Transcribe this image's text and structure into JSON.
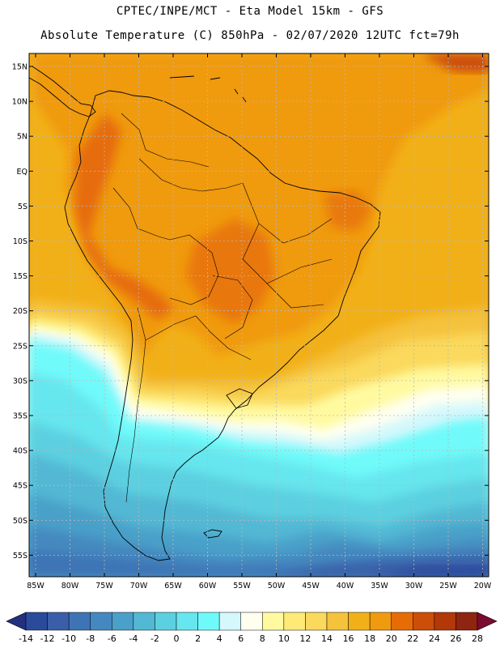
{
  "header": {
    "line1": "CPTEC/INPE/MCT -  Eta Model 15km - GFS",
    "line2": "Absolute Temperature (C) 850hPa - 02/07/2020 12UTC fct=79h"
  },
  "map": {
    "lat_labels": [
      "15N",
      "10N",
      "5N",
      "EQ",
      "5S",
      "10S",
      "15S",
      "20S",
      "25S",
      "30S",
      "35S",
      "40S",
      "45S",
      "50S",
      "55S"
    ],
    "lon_labels": [
      "85W",
      "80W",
      "75W",
      "70W",
      "65W",
      "60W",
      "55W",
      "50W",
      "45W",
      "40W",
      "35W",
      "30W",
      "25W",
      "20W"
    ]
  },
  "colorbar": {
    "labels": [
      "-14",
      "-12",
      "-10",
      "-8",
      "-6",
      "-4",
      "-2",
      "0",
      "2",
      "4",
      "6",
      "8",
      "10",
      "12",
      "14",
      "16",
      "18",
      "20",
      "22",
      "24",
      "26",
      "28"
    ],
    "colors": [
      "#2a4a9c",
      "#3a5fa8",
      "#3e74b5",
      "#4488bf",
      "#4aa0c9",
      "#52b8d4",
      "#5cd0e0",
      "#66e6ee",
      "#6ffafa",
      "#d4f8fc",
      "#fffff0",
      "#fffaa0",
      "#ffea78",
      "#fad95c",
      "#f5c23c",
      "#f2b018",
      "#f09a10",
      "#e66c08",
      "#cc4e08",
      "#b23808",
      "#8f2410"
    ],
    "under_color": "#22307e",
    "over_color": "#7a0b2e"
  }
}
